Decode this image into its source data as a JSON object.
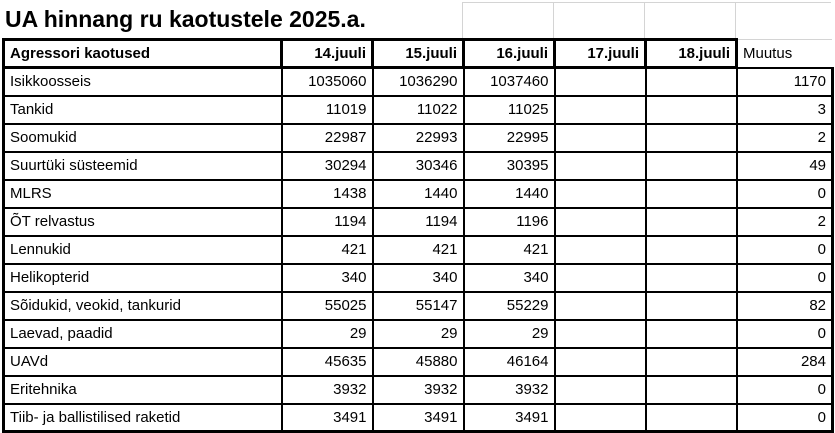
{
  "title": "UA hinnang ru kaotustele 2025.a.",
  "table": {
    "header": [
      "Agressori kaotused",
      "14.juuli",
      "15.juuli",
      "16.juuli",
      "17.juuli",
      "18.juuli",
      "Muutus"
    ],
    "rows": [
      {
        "label": "Isikkoosseis",
        "values": [
          "1035060",
          "1036290",
          "1037460",
          "",
          "",
          "1170"
        ]
      },
      {
        "label": "Tankid",
        "values": [
          "11019",
          "11022",
          "11025",
          "",
          "",
          "3"
        ]
      },
      {
        "label": "Soomukid",
        "values": [
          "22987",
          "22993",
          "22995",
          "",
          "",
          "2"
        ]
      },
      {
        "label": "Suurtüki süsteemid",
        "values": [
          "30294",
          "30346",
          "30395",
          "",
          "",
          "49"
        ]
      },
      {
        "label": "MLRS",
        "values": [
          "1438",
          "1440",
          "1440",
          "",
          "",
          "0"
        ]
      },
      {
        "label": "ÕT relvastus",
        "values": [
          "1194",
          "1194",
          "1196",
          "",
          "",
          "2"
        ]
      },
      {
        "label": "Lennukid",
        "values": [
          "421",
          "421",
          "421",
          "",
          "",
          "0"
        ]
      },
      {
        "label": "Helikopterid",
        "values": [
          "340",
          "340",
          "340",
          "",
          "",
          "0"
        ]
      },
      {
        "label": "Sõidukid, veokid, tankurid",
        "values": [
          "55025",
          "55147",
          "55229",
          "",
          "",
          "82"
        ]
      },
      {
        "label": "Laevad, paadid",
        "values": [
          "29",
          "29",
          "29",
          "",
          "",
          "0"
        ]
      },
      {
        "label": "UAVd",
        "values": [
          "45635",
          "45880",
          "46164",
          "",
          "",
          "284"
        ]
      },
      {
        "label": "Eritehnika",
        "values": [
          "3932",
          "3932",
          "3932",
          "",
          "",
          "0"
        ]
      },
      {
        "label": "Tiib- ja ballistilised raketid",
        "values": [
          "3491",
          "3491",
          "3491",
          "",
          "",
          "0"
        ]
      }
    ]
  },
  "colors": {
    "background": "#ffffff",
    "text": "#000000",
    "table_border": "#000000",
    "gridline": "#d4d4d4"
  }
}
